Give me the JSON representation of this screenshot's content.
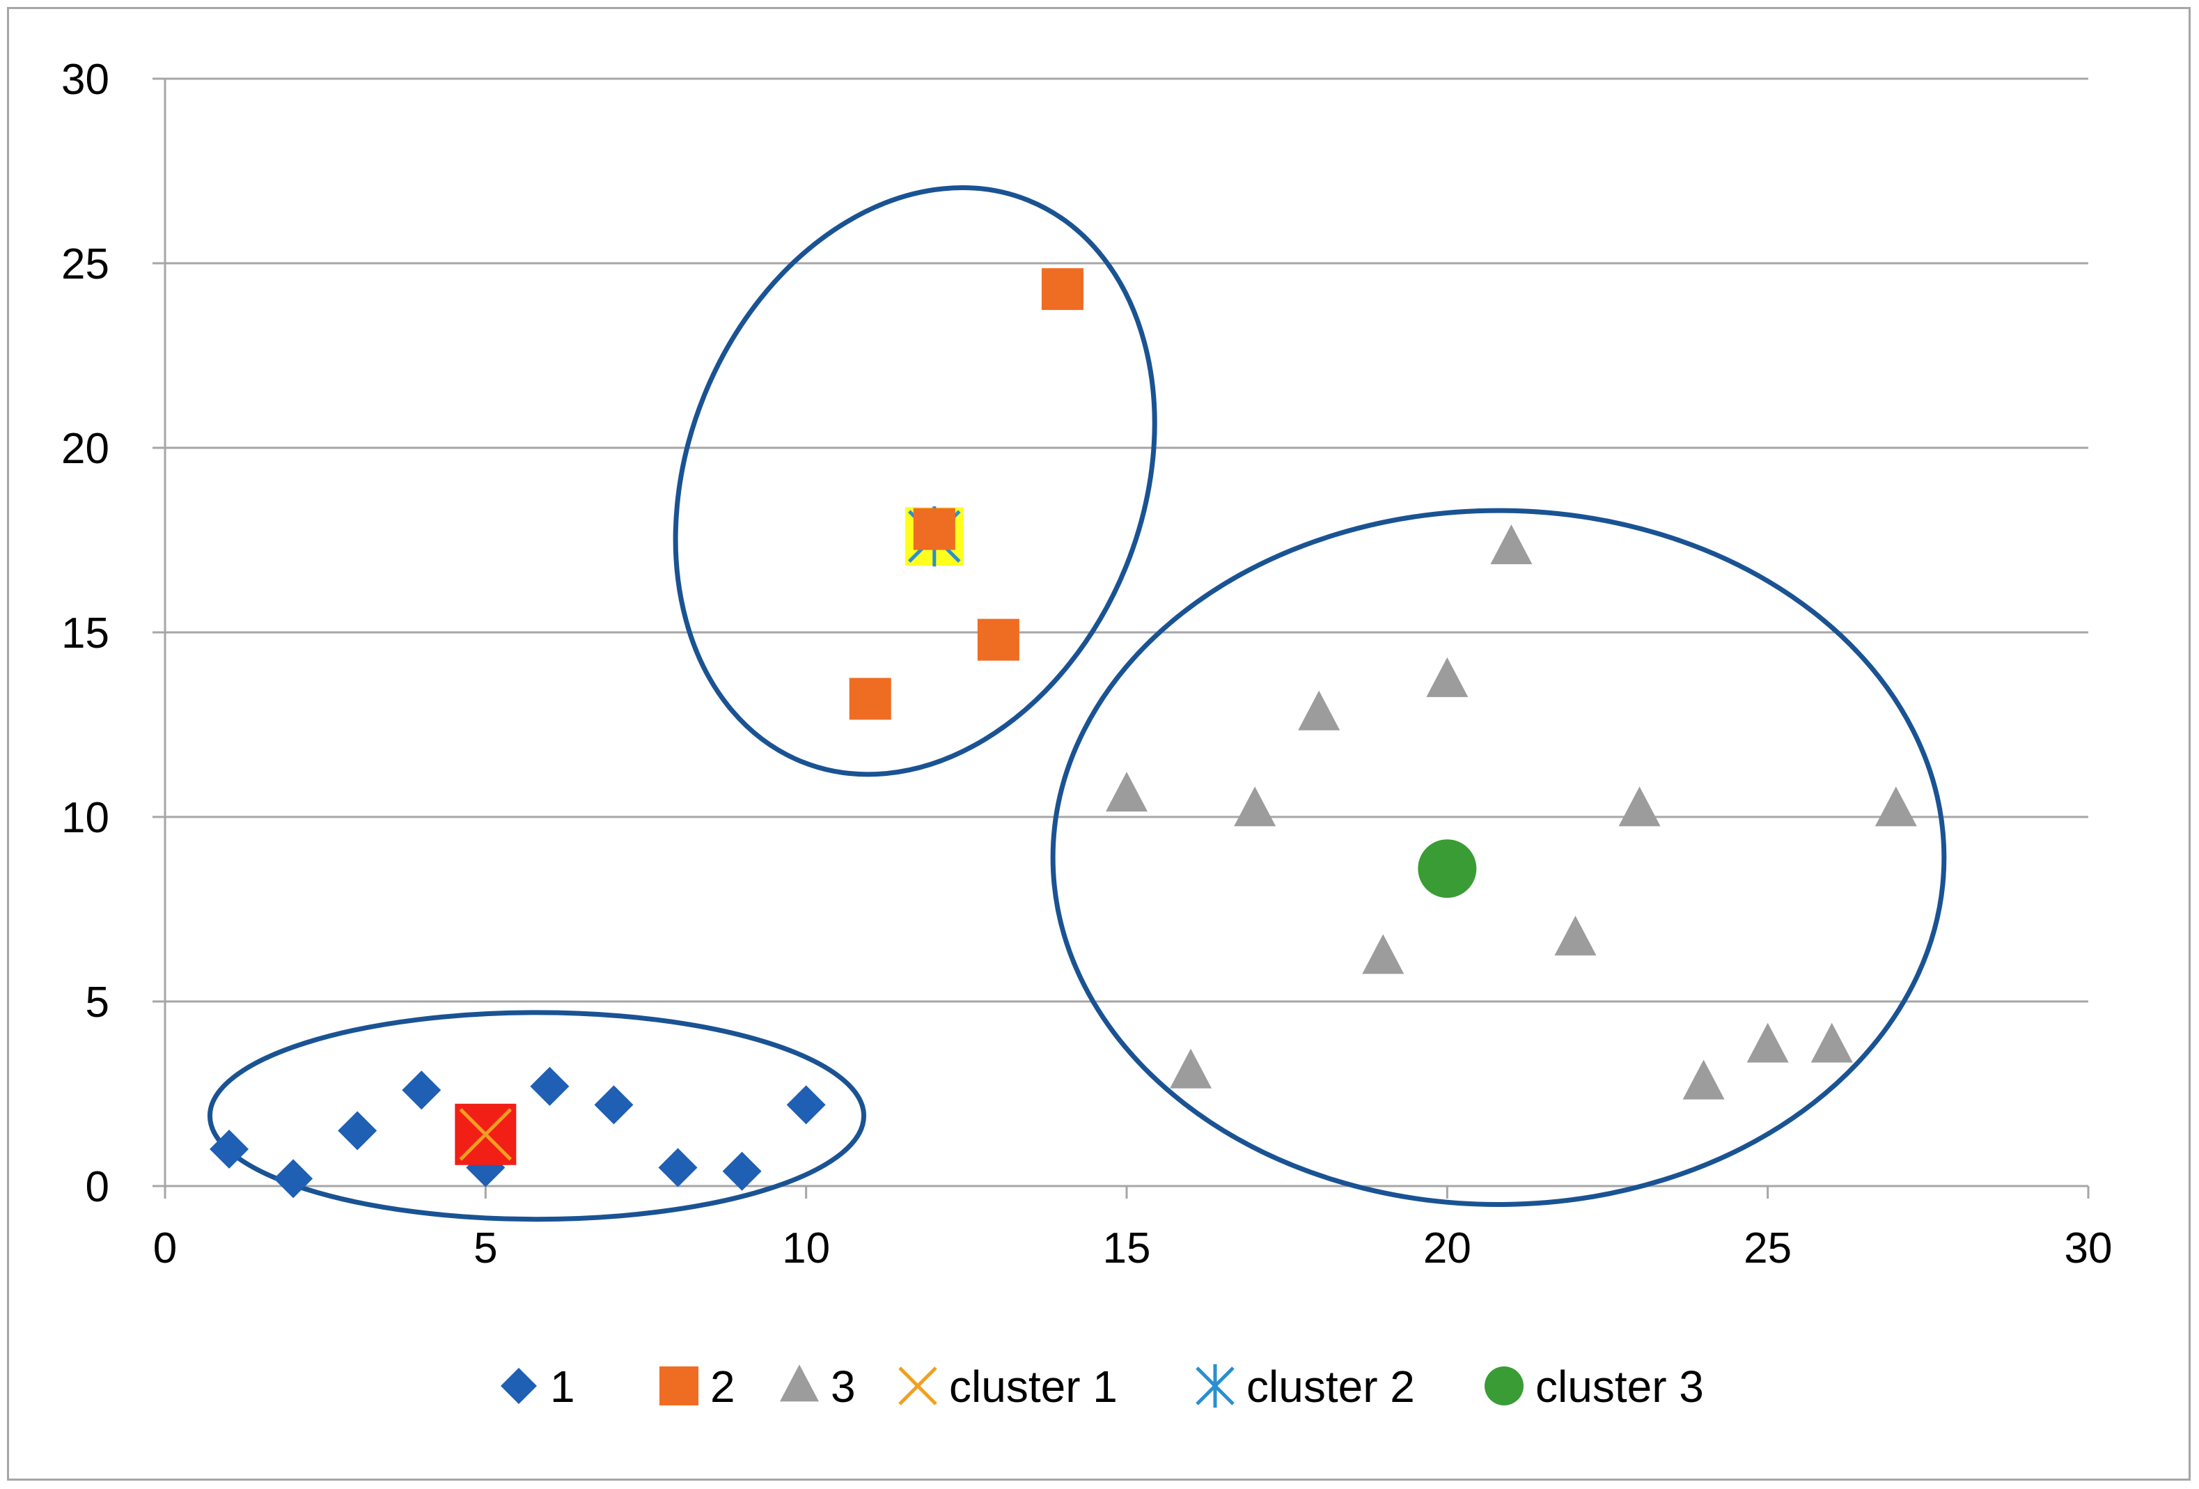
{
  "chart_data": {
    "type": "scatter",
    "title": "",
    "xlabel": "",
    "ylabel": "",
    "xlim": [
      0,
      30
    ],
    "ylim": [
      0,
      30
    ],
    "x_ticks": [
      0,
      5,
      10,
      15,
      20,
      25,
      30
    ],
    "y_ticks": [
      0,
      5,
      10,
      15,
      20,
      25,
      30
    ],
    "x_tick_labels": [
      "0",
      "5",
      "10",
      "15",
      "20",
      "25",
      "30"
    ],
    "y_tick_labels": [
      "0",
      "5",
      "10",
      "15",
      "20",
      "25",
      "30"
    ],
    "grid": "horizontal",
    "legend_position": "bottom",
    "series": [
      {
        "name": "1",
        "marker": "diamond",
        "color": "#1f5fb4",
        "points": [
          [
            1,
            1.0
          ],
          [
            2,
            0.2
          ],
          [
            3,
            1.5
          ],
          [
            4,
            2.6
          ],
          [
            5,
            0.5
          ],
          [
            6,
            2.7
          ],
          [
            7,
            2.2
          ],
          [
            8,
            0.5
          ],
          [
            9,
            0.4
          ],
          [
            10,
            2.2
          ]
        ]
      },
      {
        "name": "2",
        "marker": "square",
        "color": "#ef6c23",
        "points": [
          [
            11,
            13.2
          ],
          [
            12,
            17.8
          ],
          [
            13,
            14.8
          ],
          [
            14,
            24.3
          ]
        ]
      },
      {
        "name": "3",
        "marker": "triangle",
        "color": "#9c9c9c",
        "points": [
          [
            15,
            10.6
          ],
          [
            16,
            3.1
          ],
          [
            17,
            10.2
          ],
          [
            18,
            12.8
          ],
          [
            19,
            6.2
          ],
          [
            20,
            13.7
          ],
          [
            21,
            17.3
          ],
          [
            22,
            6.7
          ],
          [
            23,
            10.2
          ],
          [
            24,
            2.8
          ],
          [
            25,
            3.8
          ],
          [
            26,
            3.8
          ],
          [
            27,
            10.2
          ]
        ]
      },
      {
        "name": "cluster 1",
        "marker": "x",
        "color": "#f0a020",
        "highlight": "#f21f16",
        "points": [
          [
            5,
            1.4
          ]
        ]
      },
      {
        "name": "cluster 2",
        "marker": "star",
        "color": "#2a8fcf",
        "highlight": "#ffff1e",
        "points": [
          [
            12,
            17.6
          ]
        ]
      },
      {
        "name": "cluster 3",
        "marker": "circle",
        "color": "#3a9c34",
        "points": [
          [
            20,
            8.6
          ]
        ]
      }
    ],
    "annotations": [
      {
        "type": "ellipse",
        "label": "cluster 1 region",
        "cx": 5.8,
        "cy": 1.9,
        "rx": 5.1,
        "ry": 2.8,
        "rotation": 0,
        "color": "#1a5393"
      },
      {
        "type": "ellipse",
        "label": "cluster 2 region",
        "cx": 11.7,
        "cy": 19.1,
        "rx": 3.55,
        "ry": 8.2,
        "rotation": 22,
        "color": "#1a5393"
      },
      {
        "type": "ellipse",
        "label": "cluster 3 region",
        "cx": 20.8,
        "cy": 8.9,
        "rx": 6.95,
        "ry": 9.4,
        "rotation": 0,
        "color": "#1a5393"
      }
    ]
  },
  "colors": {
    "grid": "#a6a6a6",
    "axis": "#a6a6a6",
    "ellipse": "#1a5393"
  }
}
